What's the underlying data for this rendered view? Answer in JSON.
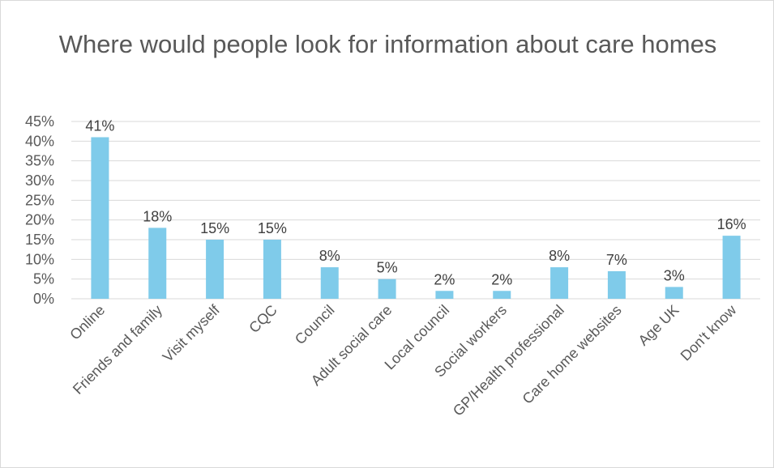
{
  "chart_data": {
    "type": "bar",
    "title": "Where would people look for information about care homes",
    "categories": [
      "Online",
      "Friends and family",
      "Visit myself",
      "CQC",
      "Council",
      "Adult social care",
      "Local council",
      "Social workers",
      "GP/Health professional",
      "Care home websites",
      "Age UK",
      "Don't know"
    ],
    "values": [
      41,
      18,
      15,
      15,
      8,
      5,
      2,
      2,
      8,
      7,
      3,
      16
    ],
    "data_labels": [
      "41%",
      "18%",
      "15%",
      "15%",
      "8%",
      "5%",
      "2%",
      "2%",
      "8%",
      "7%",
      "3%",
      "16%"
    ],
    "y_ticks": [
      "0%",
      "5%",
      "10%",
      "15%",
      "20%",
      "25%",
      "30%",
      "35%",
      "40%",
      "45%"
    ],
    "ylim": [
      0,
      45
    ],
    "xlabel": "",
    "ylabel": "",
    "grid": true,
    "legend": "none",
    "bar_color": "#7fcbea",
    "grid_color": "#d9d9d9"
  }
}
